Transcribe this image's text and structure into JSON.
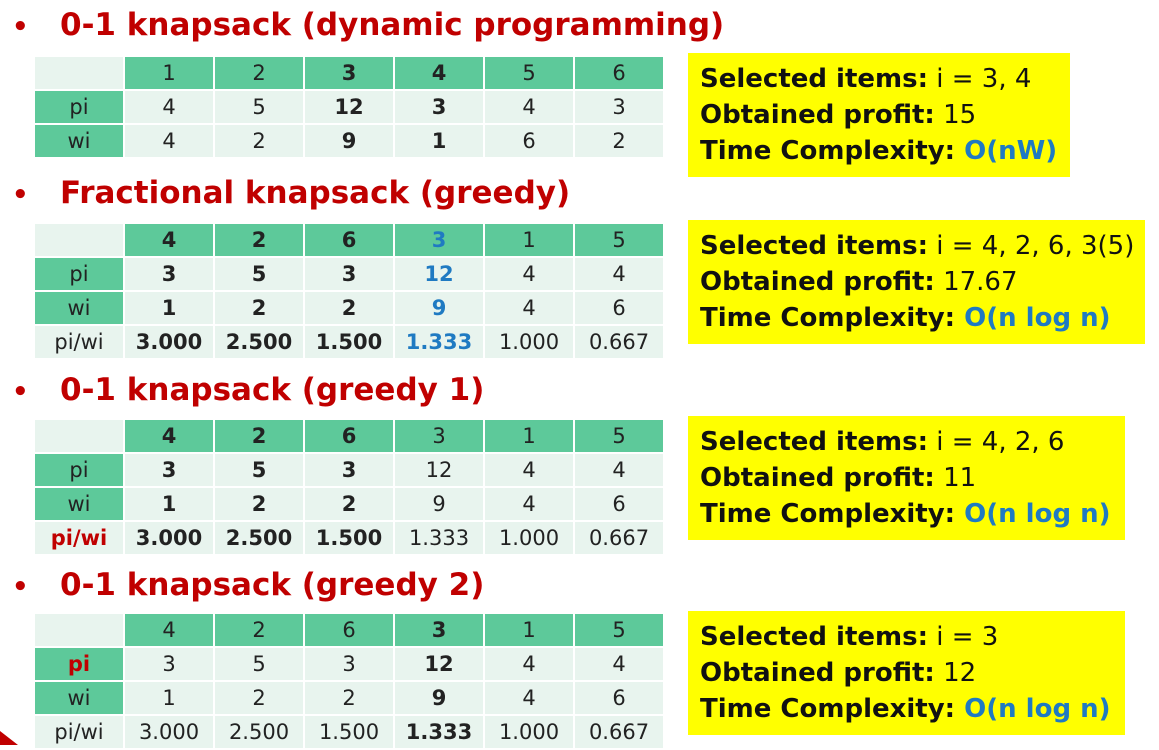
{
  "sections": [
    {
      "title": "0-1 knapsack (dynamic programming)",
      "header": [
        "1",
        "2",
        "3",
        "4",
        "5",
        "6"
      ],
      "rows": [
        {
          "label": "pi",
          "cells": [
            "4",
            "5",
            "12",
            "3",
            "4",
            "3"
          ]
        },
        {
          "label": "wi",
          "cells": [
            "4",
            "2",
            "9",
            "1",
            "6",
            "2"
          ]
        }
      ],
      "result": {
        "selected_label": "Selected items:",
        "selected_value": " i = 3, 4",
        "profit_label": "Obtained profit:",
        "profit_value": " 15",
        "complexity_label": "Time Complexity:",
        "complexity_value": " O(nW)"
      }
    },
    {
      "title": "Fractional knapsack (greedy)",
      "header": [
        "4",
        "2",
        "6",
        "3",
        "1",
        "5"
      ],
      "rows": [
        {
          "label": "pi",
          "cells": [
            "3",
            "5",
            "3",
            "12",
            "4",
            "4"
          ]
        },
        {
          "label": "wi",
          "cells": [
            "1",
            "2",
            "2",
            "9",
            "4",
            "6"
          ]
        },
        {
          "label": "pi/wi",
          "cells": [
            "3.000",
            "2.500",
            "1.500",
            "1.333",
            "1.000",
            "0.667"
          ]
        }
      ],
      "result": {
        "selected_label": "Selected items:",
        "selected_value": " i = 4, 2, 6, 3(5)",
        "profit_label": "Obtained profit:",
        "profit_value": " 17.67",
        "complexity_label": "Time Complexity:",
        "complexity_value": " O(n log n)"
      }
    },
    {
      "title": "0-1 knapsack (greedy 1)",
      "header": [
        "4",
        "2",
        "6",
        "3",
        "1",
        "5"
      ],
      "rows": [
        {
          "label": "pi",
          "cells": [
            "3",
            "5",
            "3",
            "12",
            "4",
            "4"
          ]
        },
        {
          "label": "wi",
          "cells": [
            "1",
            "2",
            "2",
            "9",
            "4",
            "6"
          ]
        },
        {
          "label": "pi/wi",
          "cells": [
            "3.000",
            "2.500",
            "1.500",
            "1.333",
            "1.000",
            "0.667"
          ]
        }
      ],
      "result": {
        "selected_label": "Selected items:",
        "selected_value": " i = 4, 2, 6",
        "profit_label": "Obtained profit:",
        "profit_value": " 11",
        "complexity_label": "Time Complexity:",
        "complexity_value": " O(n log n)"
      }
    },
    {
      "title": "0-1 knapsack (greedy 2)",
      "header": [
        "4",
        "2",
        "6",
        "3",
        "1",
        "5"
      ],
      "rows": [
        {
          "label": "pi",
          "cells": [
            "3",
            "5",
            "3",
            "12",
            "4",
            "4"
          ]
        },
        {
          "label": "wi",
          "cells": [
            "1",
            "2",
            "2",
            "9",
            "4",
            "6"
          ]
        },
        {
          "label": "pi/wi",
          "cells": [
            "3.000",
            "2.500",
            "1.500",
            "1.333",
            "1.000",
            "0.667"
          ]
        }
      ],
      "result": {
        "selected_label": "Selected items:",
        "selected_value": " i = 3",
        "profit_label": "Obtained profit:",
        "profit_value": " 12",
        "complexity_label": "Time Complexity:",
        "complexity_value": " O(n log n)"
      }
    }
  ],
  "colors": {
    "heading": "#c00000",
    "header_cell": "#5dc99a",
    "body_cell": "#e8f4ee",
    "highlight_blue": "#1f7ac2",
    "box": "#ffff00"
  }
}
